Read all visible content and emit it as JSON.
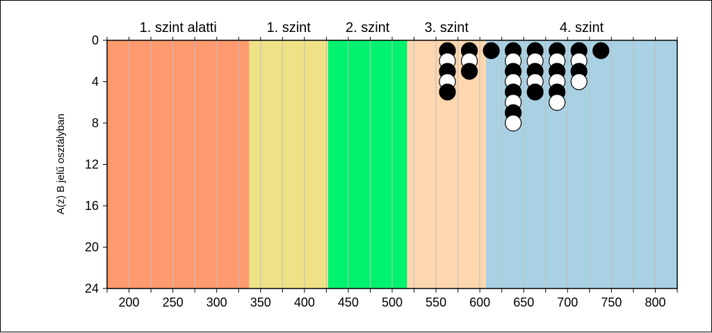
{
  "chart_data": {
    "type": "scatter",
    "ylabel": "A(z) B jelű osztályban",
    "xlim": [
      175,
      825
    ],
    "ylim": [
      24,
      0
    ],
    "y_inverted": true,
    "x_ticks": [
      200,
      250,
      300,
      350,
      400,
      450,
      500,
      550,
      600,
      650,
      700,
      750,
      800
    ],
    "y_ticks": [
      0,
      4,
      8,
      12,
      16,
      20,
      24
    ],
    "x_gridlines": [
      175,
      200,
      225,
      250,
      275,
      300,
      325,
      350,
      375,
      400,
      425,
      450,
      475,
      500,
      525,
      550,
      575,
      600,
      625,
      650,
      675,
      700,
      725,
      750,
      775,
      800,
      825
    ],
    "grid": true,
    "levels": [
      {
        "label": "1. szint alatti",
        "from": 175,
        "to": 337,
        "color": "#FF9A6E"
      },
      {
        "label": "1. szint",
        "from": 337,
        "to": 427,
        "color": "#EEE186"
      },
      {
        "label": "2. szint",
        "from": 427,
        "to": 517,
        "color": "#00F26E"
      },
      {
        "label": "3. szint",
        "from": 517,
        "to": 607,
        "color": "#FFD7AF"
      },
      {
        "label": "4. szint",
        "from": 607,
        "to": 825,
        "color": "#A8D2E4"
      }
    ],
    "columns": [
      {
        "x": 563,
        "dots": [
          "black",
          "white",
          "black",
          "white",
          "black"
        ]
      },
      {
        "x": 588,
        "dots": [
          "black",
          "white",
          "black"
        ]
      },
      {
        "x": 613,
        "dots": [
          "black"
        ]
      },
      {
        "x": 638,
        "dots": [
          "black",
          "white",
          "black",
          "white",
          "black",
          "white",
          "black",
          "white"
        ]
      },
      {
        "x": 663,
        "dots": [
          "black",
          "white",
          "black",
          "white",
          "black"
        ]
      },
      {
        "x": 688,
        "dots": [
          "black",
          "white",
          "black",
          "white",
          "black",
          "white"
        ]
      },
      {
        "x": 713,
        "dots": [
          "black",
          "white",
          "black",
          "white"
        ]
      },
      {
        "x": 738,
        "dots": [
          "black"
        ]
      }
    ],
    "marker_colors": {
      "black": "#000000",
      "white": "#FFFFFF"
    },
    "plot_border_color": "#000000",
    "grid_color": "#BEBEBE"
  }
}
